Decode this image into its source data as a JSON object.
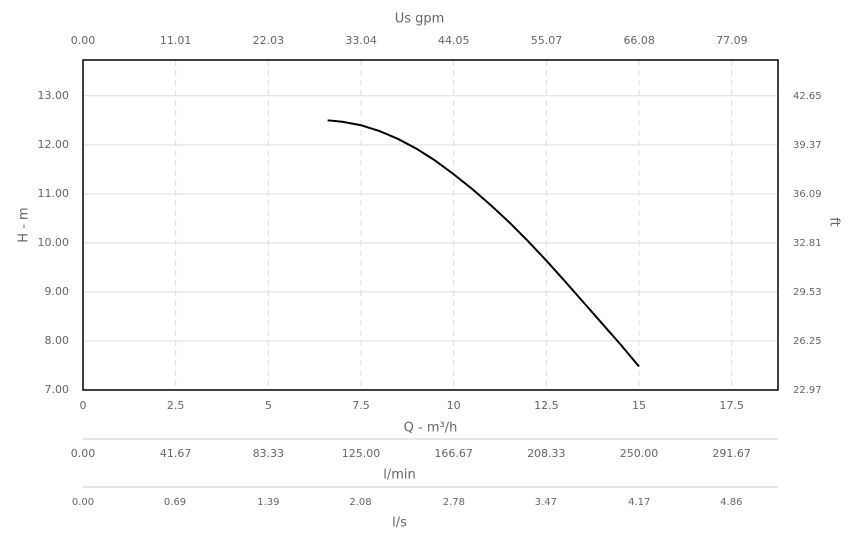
{
  "chart_data": {
    "type": "line",
    "xlabel": "Q - m³/h",
    "ylabel": "H - m",
    "xlim": [
      0,
      18.75
    ],
    "xticks": [
      0,
      2.5,
      5,
      7.5,
      10,
      12.5,
      15,
      17.5
    ],
    "ylim": [
      7,
      13.73
    ],
    "yticks": [
      {
        "value": 7,
        "label": "7.00"
      },
      {
        "value": 8,
        "label": "8.00"
      },
      {
        "value": 9,
        "label": "9.00"
      },
      {
        "value": 10,
        "label": "10.00"
      },
      {
        "value": 11,
        "label": "11.00"
      },
      {
        "value": 12,
        "label": "12.00"
      },
      {
        "value": 13,
        "label": "13.00"
      }
    ],
    "grid": true,
    "top_axis": {
      "label": "Us gpm",
      "xlim": [
        0,
        82.57
      ],
      "xticks": [
        {
          "value": 0,
          "label": "0.00"
        },
        11.01,
        22.03,
        33.04,
        44.05,
        55.07,
        66.08,
        77.09
      ]
    },
    "right_axis": {
      "label": "ft",
      "ylim": [
        22.97,
        45.05
      ],
      "yticks": [
        22.97,
        26.25,
        29.53,
        32.81,
        36.09,
        39.37,
        42.65
      ]
    },
    "bottom_axes": [
      {
        "label": "l/min",
        "xlim": [
          0,
          312.5
        ],
        "xticks": [
          {
            "value": 0,
            "label": "0.00"
          },
          41.67,
          83.33,
          {
            "value": 125,
            "label": "125.00"
          },
          166.67,
          208.33,
          {
            "value": 250,
            "label": "250.00"
          },
          291.67
        ]
      },
      {
        "label": "l/s",
        "xlim": [
          0,
          5.21
        ],
        "xticks": [
          {
            "value": 0,
            "label": "0.00"
          },
          0.69,
          1.39,
          2.08,
          2.78,
          3.47,
          4.17,
          4.86
        ]
      }
    ],
    "series": [
      {
        "color": "#000000",
        "x": [
          6.6,
          7,
          7.5,
          8,
          8.5,
          9,
          9.5,
          10,
          10.5,
          11,
          11.5,
          12,
          12.5,
          13,
          13.5,
          14,
          14.5,
          15
        ],
        "values": [
          12.5,
          12.47,
          12.4,
          12.28,
          12.12,
          11.92,
          11.68,
          11.4,
          11.1,
          10.77,
          10.42,
          10.04,
          9.64,
          9.22,
          8.79,
          8.36,
          7.93,
          7.48
        ]
      }
    ]
  }
}
